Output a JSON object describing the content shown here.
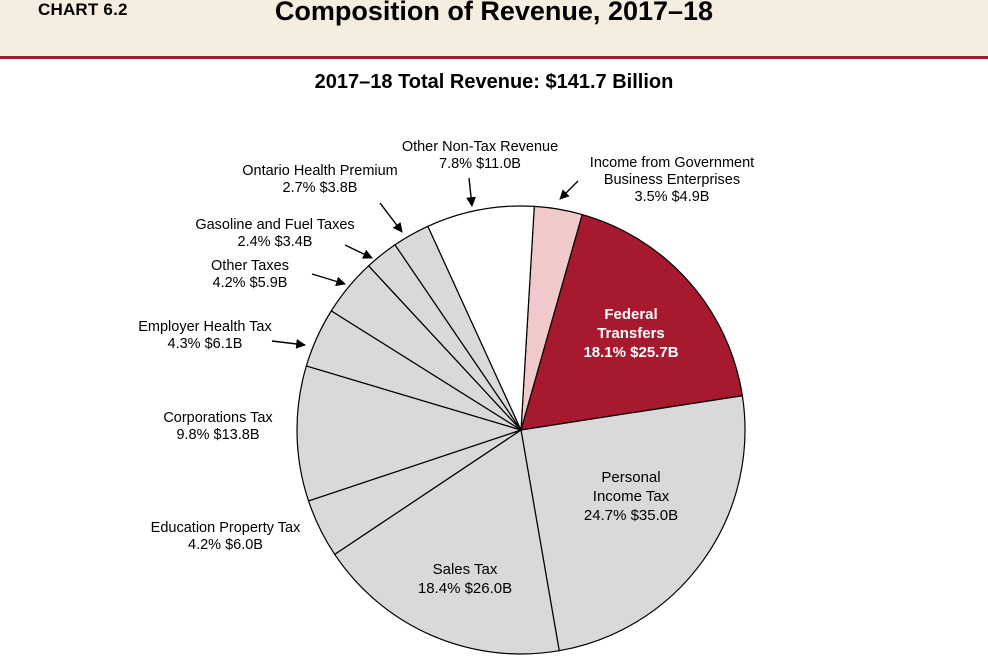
{
  "header": {
    "chart_number": "CHART 6.2",
    "title": "Composition of Revenue, 2017–18"
  },
  "chart_data": {
    "type": "pie",
    "title": "Composition of Revenue, 2017–18",
    "subtitle": "2017–18 Total Revenue: $141.7 Billion",
    "unit": "$ Billion",
    "total": 141.7,
    "colors": {
      "federal": "#a6192e",
      "gbe": "#f2c9cb",
      "nontax": "#ffffff",
      "tax": "#d9d9d9",
      "stroke": "#000000"
    },
    "slices": [
      {
        "id": "gbe",
        "name": "Income from Government Business Enterprises",
        "name_lines": [
          "Income from Government",
          "Business Enterprises"
        ],
        "percent": 3.5,
        "value": 4.9,
        "value_label": "3.5%  $4.9B",
        "color": "#f2c9cb"
      },
      {
        "id": "federal",
        "name": "Federal Transfers",
        "name_lines": [
          "Federal",
          "Transfers"
        ],
        "percent": 18.1,
        "value": 25.7,
        "value_label": "18.1%  $25.7B",
        "color": "#a6192e"
      },
      {
        "id": "pit",
        "name": "Personal Income Tax",
        "name_lines": [
          "Personal",
          "Income Tax"
        ],
        "percent": 24.7,
        "value": 35.0,
        "value_label": "24.7%  $35.0B",
        "color": "#d9d9d9"
      },
      {
        "id": "sales",
        "name": "Sales Tax",
        "name_lines": [
          "Sales Tax"
        ],
        "percent": 18.4,
        "value": 26.0,
        "value_label": "18.4%  $26.0B",
        "color": "#d9d9d9"
      },
      {
        "id": "edu",
        "name": "Education Property Tax",
        "name_lines": [
          "Education Property Tax"
        ],
        "percent": 4.2,
        "value": 6.0,
        "value_label": "4.2%  $6.0B",
        "color": "#d9d9d9"
      },
      {
        "id": "corp",
        "name": "Corporations Tax",
        "name_lines": [
          "Corporations Tax"
        ],
        "percent": 9.8,
        "value": 13.8,
        "value_label": "9.8%  $13.8B",
        "color": "#d9d9d9"
      },
      {
        "id": "eht",
        "name": "Employer Health Tax",
        "name_lines": [
          "Employer Health Tax"
        ],
        "percent": 4.3,
        "value": 6.1,
        "value_label": "4.3%  $6.1B",
        "color": "#d9d9d9"
      },
      {
        "id": "other_taxes",
        "name": "Other Taxes",
        "name_lines": [
          "Other Taxes"
        ],
        "percent": 4.2,
        "value": 5.9,
        "value_label": "4.2%  $5.9B",
        "color": "#d9d9d9"
      },
      {
        "id": "gas",
        "name": "Gasoline and Fuel Taxes",
        "name_lines": [
          "Gasoline and Fuel Taxes"
        ],
        "percent": 2.4,
        "value": 3.4,
        "value_label": "2.4%  $3.4B",
        "color": "#d9d9d9"
      },
      {
        "id": "ohp",
        "name": "Ontario Health Premium",
        "name_lines": [
          "Ontario Health Premium"
        ],
        "percent": 2.7,
        "value": 3.8,
        "value_label": "2.7%  $3.8B",
        "color": "#d9d9d9"
      },
      {
        "id": "nontax",
        "name": "Other Non-Tax Revenue",
        "name_lines": [
          "Other Non-Tax Revenue"
        ],
        "percent": 7.8,
        "value": 11.0,
        "value_label": "7.8%  $11.0B",
        "color": "#ffffff"
      }
    ]
  }
}
